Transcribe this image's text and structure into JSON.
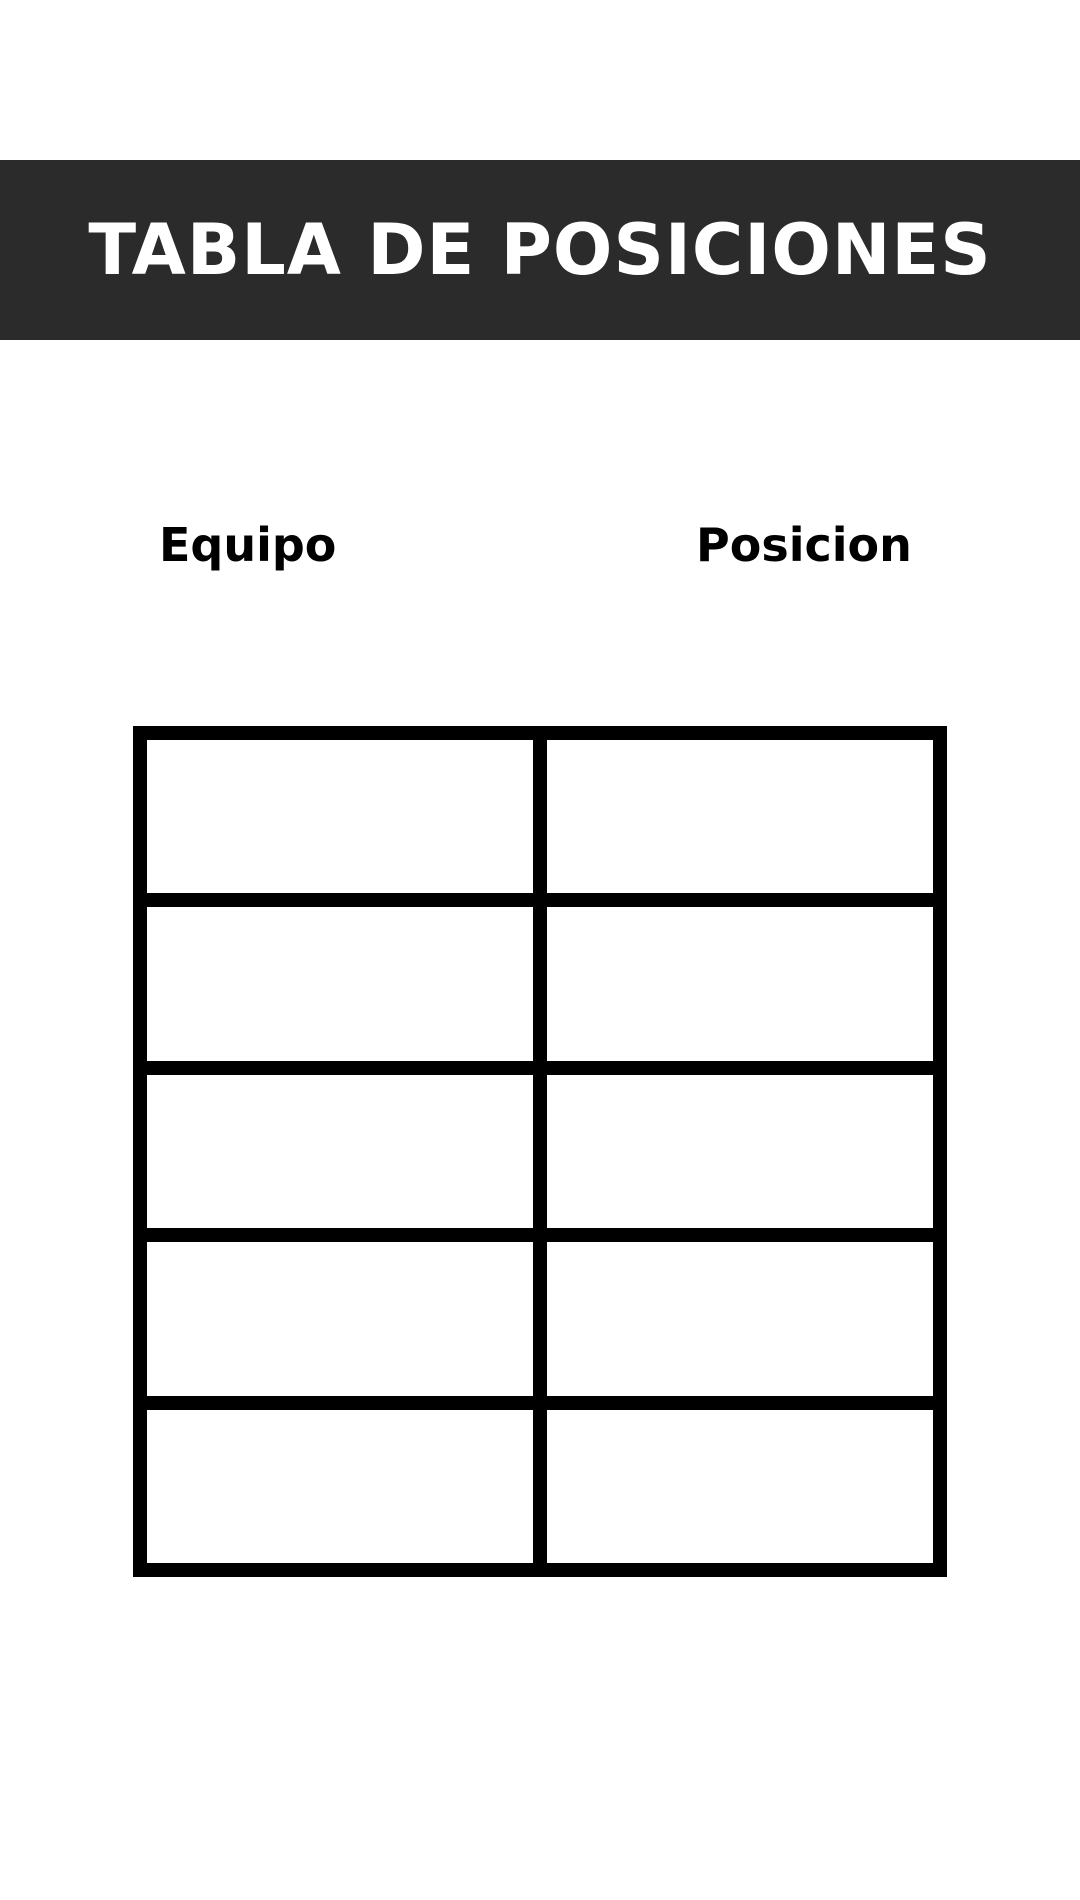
{
  "banner": {
    "title": "TABLA DE POSICIONES"
  },
  "table": {
    "headers": [
      "Equipo",
      "Posicion"
    ],
    "rows": [
      [
        "",
        ""
      ],
      [
        "",
        ""
      ],
      [
        "",
        ""
      ],
      [
        "",
        ""
      ],
      [
        "",
        ""
      ]
    ]
  },
  "colors": {
    "banner_background": "#2b2b2b",
    "banner_text": "#ffffff",
    "grid_lines": "#000000",
    "page_background": "#ffffff"
  }
}
